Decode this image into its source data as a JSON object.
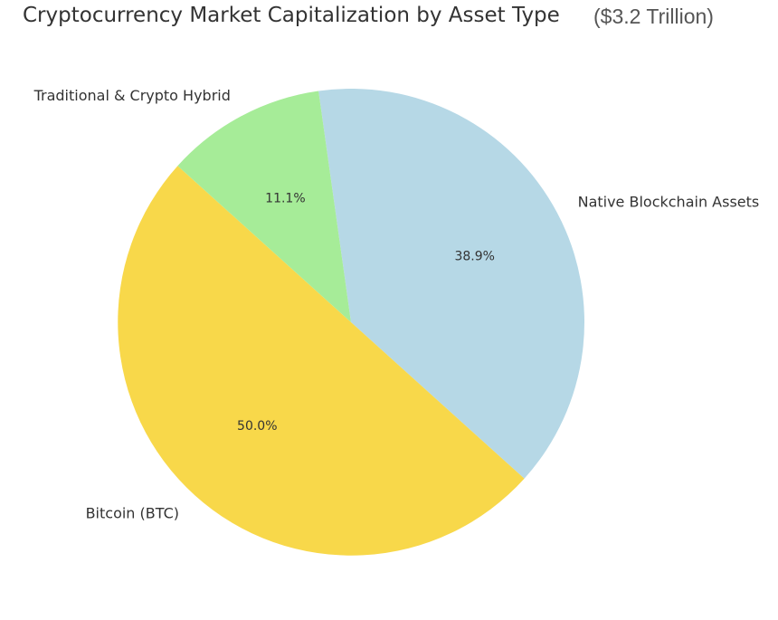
{
  "chart_data": {
    "type": "pie",
    "title": "Cryptocurrency Market Capitalization by Asset Type",
    "subtitle": "($3.2 Trillion)",
    "slices": [
      {
        "label": "Native Blockchain Assets",
        "value": 38.9,
        "pct_label": "38.9%",
        "color": "#b6d8e6"
      },
      {
        "label": "Bitcoin (BTC)",
        "value": 50.0,
        "pct_label": "50.0%",
        "color": "#f8d84a"
      },
      {
        "label": "Traditional & Crypto Hybrid",
        "value": 11.1,
        "pct_label": "11.1%",
        "color": "#a6ec98"
      }
    ]
  }
}
